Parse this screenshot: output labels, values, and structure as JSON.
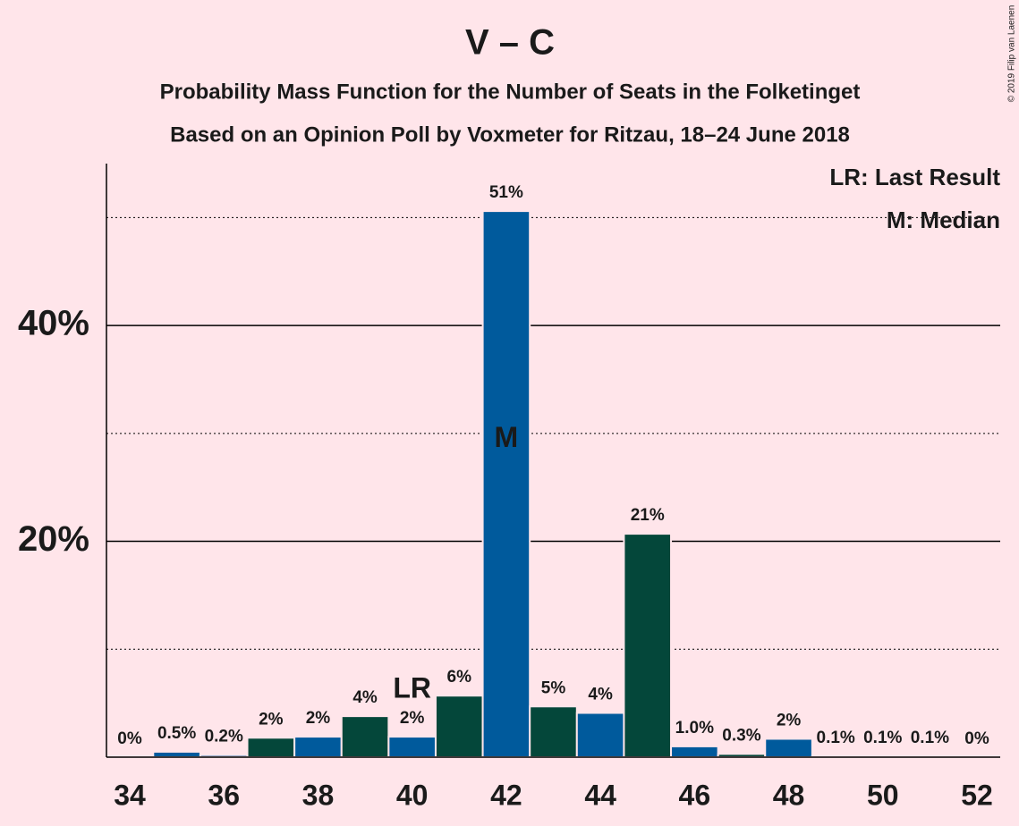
{
  "chart_data": {
    "type": "bar",
    "title": "V – C",
    "subtitle": "Probability Mass Function for the Number of Seats in the Folketinget",
    "subtitle2": "Based on an Opinion Poll by Voxmeter for Ritzau, 18–24 June 2018",
    "copyright": "© 2019 Filip van Laenen",
    "x": [
      34,
      35,
      36,
      37,
      38,
      39,
      40,
      41,
      42,
      43,
      44,
      45,
      46,
      47,
      48,
      49,
      50,
      51,
      52
    ],
    "values": [
      0,
      0.5,
      0.2,
      1.8,
      1.9,
      3.8,
      1.9,
      5.7,
      50.6,
      4.7,
      4.1,
      20.7,
      1.0,
      0.3,
      1.7,
      0.1,
      0.1,
      0.1,
      0
    ],
    "value_labels": [
      "0%",
      "0.5%",
      "0.2%",
      "2%",
      "2%",
      "4%",
      "2%",
      "6%",
      "51%",
      "5%",
      "4%",
      "21%",
      "1.0%",
      "0.3%",
      "2%",
      "0.1%",
      "0.1%",
      "0.1%",
      "0%"
    ],
    "colors": [
      "#005a9c",
      "#005a9c",
      "#005a9c",
      "#04473a",
      "#005a9c",
      "#04473a",
      "#005a9c",
      "#04473a",
      "#005a9c",
      "#04473a",
      "#005a9c",
      "#04473a",
      "#005a9c",
      "#04473a",
      "#005a9c",
      "#04473a",
      "#005a9c",
      "#04473a",
      "#005a9c"
    ],
    "xlim": [
      33.5,
      52.5
    ],
    "xticks": [
      34,
      36,
      38,
      40,
      42,
      44,
      46,
      48,
      50,
      52
    ],
    "ylim": [
      0,
      55
    ],
    "yticks": [
      {
        "value": 20,
        "label": "20%"
      },
      {
        "value": 40,
        "label": "40%"
      }
    ],
    "minor_yticks": [
      10,
      30,
      50
    ],
    "grid": true,
    "annotations": [
      {
        "x": 40,
        "text": "LR"
      },
      {
        "x": 42,
        "text": "M"
      }
    ],
    "legend": [
      "LR: Last Result",
      "M: Median"
    ],
    "legend_position": "upper right"
  }
}
